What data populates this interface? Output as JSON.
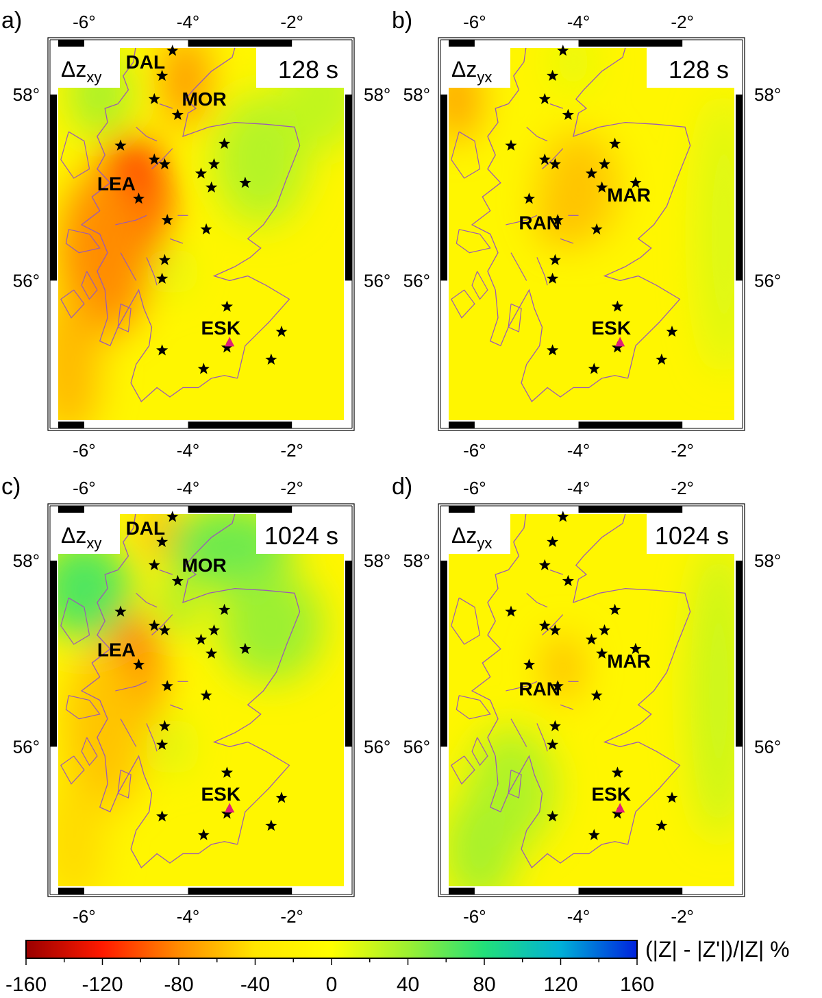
{
  "colorbar": {
    "label": "(|Z| - |Z'|)/|Z| %",
    "range": [
      -160,
      160
    ],
    "ticks": [
      "-160",
      "-120",
      "-80",
      "-40",
      "0",
      "40",
      "80",
      "120",
      "160"
    ],
    "stops": [
      {
        "v": -160,
        "color": "#9a0000"
      },
      {
        "v": -120,
        "color": "#ff1a00"
      },
      {
        "v": -80,
        "color": "#ff8c00"
      },
      {
        "v": -40,
        "color": "#ffe600"
      },
      {
        "v": 0,
        "color": "#ffff00"
      },
      {
        "v": 40,
        "color": "#9cf032"
      },
      {
        "v": 80,
        "color": "#22e07a"
      },
      {
        "v": 120,
        "color": "#00b0d8"
      },
      {
        "v": 160,
        "color": "#0022dd"
      }
    ]
  },
  "map": {
    "lon_range": [
      -6.5,
      -1.0
    ],
    "lat_range": [
      54.5,
      58.5
    ],
    "lon_ticks": [
      "-6°",
      "-4°",
      "-2°"
    ],
    "lat_ticks": [
      "58°",
      "56°"
    ],
    "coastline_color": "#9b59b6",
    "star_color": "#000000",
    "triangle_color": "#e0207a",
    "background_value": -15
  },
  "stations": [
    {
      "lon": -4.3,
      "lat": 58.47
    },
    {
      "lon": -4.5,
      "lat": 58.2
    },
    {
      "lon": -4.65,
      "lat": 57.95
    },
    {
      "lon": -4.2,
      "lat": 57.78
    },
    {
      "lon": -5.3,
      "lat": 57.45
    },
    {
      "lon": -3.3,
      "lat": 57.47
    },
    {
      "lon": -4.65,
      "lat": 57.3
    },
    {
      "lon": -4.45,
      "lat": 57.25
    },
    {
      "lon": -3.5,
      "lat": 57.25
    },
    {
      "lon": -3.75,
      "lat": 57.15
    },
    {
      "lon": -2.9,
      "lat": 57.05
    },
    {
      "lon": -3.55,
      "lat": 57.0
    },
    {
      "lon": -4.95,
      "lat": 56.88
    },
    {
      "lon": -4.4,
      "lat": 56.65
    },
    {
      "lon": -3.65,
      "lat": 56.55
    },
    {
      "lon": -4.45,
      "lat": 56.22
    },
    {
      "lon": -4.5,
      "lat": 56.02
    },
    {
      "lon": -3.25,
      "lat": 55.72
    },
    {
      "lon": -2.2,
      "lat": 55.45
    },
    {
      "lon": -3.25,
      "lat": 55.28
    },
    {
      "lon": -4.5,
      "lat": 55.25
    },
    {
      "lon": -2.4,
      "lat": 55.15
    },
    {
      "lon": -3.7,
      "lat": 55.05
    }
  ],
  "triangle": {
    "lon": -3.2,
    "lat": 55.33
  },
  "panels": [
    {
      "letter": "a)",
      "component": "Δz",
      "subscript": "xy",
      "period": "128 s",
      "labels": [
        {
          "text": "DAL",
          "lon": -5.2,
          "lat": 58.28
        },
        {
          "text": "MOR",
          "lon": -4.12,
          "lat": 57.88
        },
        {
          "text": "LEA",
          "lon": -5.75,
          "lat": 56.97
        },
        {
          "text": "ESK",
          "lon": -3.75,
          "lat": 55.42
        }
      ],
      "anomalies": [
        {
          "lon": -5.1,
          "lat": 56.8,
          "rx": 0.7,
          "ry": 0.75,
          "v": -120
        },
        {
          "lon": -5.6,
          "lat": 56.3,
          "rx": 0.9,
          "ry": 0.9,
          "v": -80
        },
        {
          "lon": -6.3,
          "lat": 55.1,
          "rx": 0.6,
          "ry": 0.8,
          "v": -60
        },
        {
          "lon": -4.05,
          "lat": 58.15,
          "rx": 0.45,
          "ry": 0.5,
          "v": -75
        },
        {
          "lon": -5.7,
          "lat": 58.0,
          "rx": 0.6,
          "ry": 0.45,
          "v": 35
        },
        {
          "lon": -2.6,
          "lat": 57.3,
          "rx": 0.9,
          "ry": 0.7,
          "v": 30
        },
        {
          "lon": -1.4,
          "lat": 58.0,
          "rx": 0.8,
          "ry": 0.6,
          "v": 25
        },
        {
          "lon": -4.3,
          "lat": 56.1,
          "rx": 0.3,
          "ry": 0.25,
          "v": 15
        }
      ]
    },
    {
      "letter": "b)",
      "component": "Δz",
      "subscript": "yx",
      "period": "128 s",
      "labels": [
        {
          "text": "MAR",
          "lon": -3.45,
          "lat": 56.85
        },
        {
          "text": "RAN",
          "lon": -5.15,
          "lat": 56.55
        },
        {
          "text": "ESK",
          "lon": -3.75,
          "lat": 55.42
        }
      ],
      "anomalies": [
        {
          "lon": -4.3,
          "lat": 56.8,
          "rx": 0.45,
          "ry": 0.4,
          "v": -100
        },
        {
          "lon": -4.0,
          "lat": 57.0,
          "rx": 0.75,
          "ry": 0.6,
          "v": -55
        },
        {
          "lon": -6.35,
          "lat": 57.95,
          "rx": 0.45,
          "ry": 0.45,
          "v": -70
        },
        {
          "lon": -4.1,
          "lat": 58.35,
          "rx": 0.35,
          "ry": 0.3,
          "v": 12
        },
        {
          "lon": -1.2,
          "lat": 56.5,
          "rx": 0.5,
          "ry": 1.5,
          "v": 15
        }
      ]
    },
    {
      "letter": "c)",
      "component": "Δz",
      "subscript": "xy",
      "period": "1024 s",
      "labels": [
        {
          "text": "DAL",
          "lon": -5.2,
          "lat": 58.28
        },
        {
          "text": "MOR",
          "lon": -4.12,
          "lat": 57.88
        },
        {
          "text": "LEA",
          "lon": -5.75,
          "lat": 56.97
        },
        {
          "text": "ESK",
          "lon": -3.75,
          "lat": 55.42
        }
      ],
      "anomalies": [
        {
          "lon": -5.1,
          "lat": 56.75,
          "rx": 0.55,
          "ry": 0.7,
          "v": -90
        },
        {
          "lon": -5.6,
          "lat": 56.2,
          "rx": 0.8,
          "ry": 0.9,
          "v": -55
        },
        {
          "lon": -6.2,
          "lat": 55.0,
          "rx": 0.6,
          "ry": 0.7,
          "v": -45
        },
        {
          "lon": -4.5,
          "lat": 58.3,
          "rx": 0.35,
          "ry": 0.3,
          "v": -65
        },
        {
          "lon": -6.0,
          "lat": 57.7,
          "rx": 0.9,
          "ry": 0.55,
          "v": 65
        },
        {
          "lon": -3.2,
          "lat": 58.15,
          "rx": 1.2,
          "ry": 0.45,
          "v": 55
        },
        {
          "lon": -2.4,
          "lat": 57.3,
          "rx": 1.0,
          "ry": 0.6,
          "v": 40
        },
        {
          "lon": -4.2,
          "lat": 57.5,
          "rx": 0.3,
          "ry": 0.3,
          "v": 45
        },
        {
          "lon": -4.3,
          "lat": 56.0,
          "rx": 0.3,
          "ry": 0.3,
          "v": 18
        }
      ]
    },
    {
      "letter": "d)",
      "component": "Δz",
      "subscript": "yx",
      "period": "1024 s",
      "labels": [
        {
          "text": "MAR",
          "lon": -3.45,
          "lat": 56.85
        },
        {
          "text": "RAN",
          "lon": -5.15,
          "lat": 56.55
        },
        {
          "text": "ESK",
          "lon": -3.75,
          "lat": 55.42
        }
      ],
      "anomalies": [
        {
          "lon": -4.3,
          "lat": 56.85,
          "rx": 0.35,
          "ry": 0.35,
          "v": -60
        },
        {
          "lon": -5.3,
          "lat": 55.55,
          "rx": 0.85,
          "ry": 0.65,
          "v": 32
        },
        {
          "lon": -5.9,
          "lat": 54.9,
          "rx": 0.7,
          "ry": 0.6,
          "v": 35
        },
        {
          "lon": -1.3,
          "lat": 56.6,
          "rx": 0.55,
          "ry": 1.6,
          "v": 22
        }
      ]
    }
  ]
}
